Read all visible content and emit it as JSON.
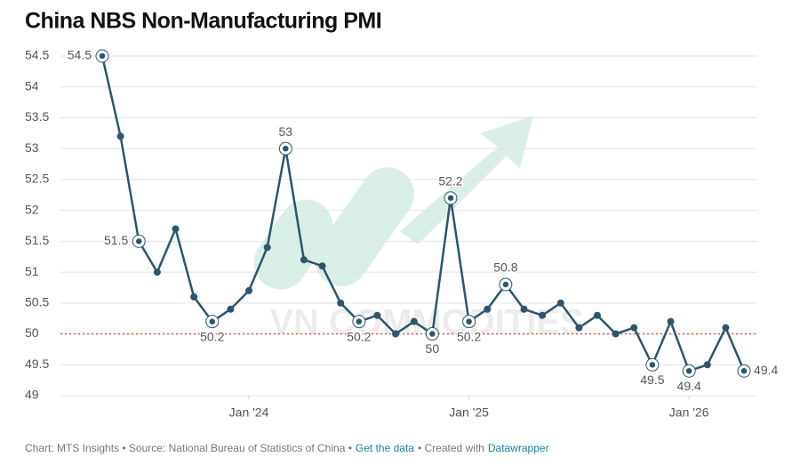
{
  "chart_data": {
    "type": "line",
    "title": "China NBS Non-Manufacturing PMI",
    "x": [
      "2023-05",
      "2023-06",
      "2023-07",
      "2023-08",
      "2023-09",
      "2023-10",
      "2023-11",
      "2023-12",
      "2024-01",
      "2024-02",
      "2024-03",
      "2024-04",
      "2024-05",
      "2024-06",
      "2024-07",
      "2024-08",
      "2024-09",
      "2024-10",
      "2024-11",
      "2024-12",
      "2025-01",
      "2025-02",
      "2025-03",
      "2025-04",
      "2025-05",
      "2025-06",
      "2025-07",
      "2025-08",
      "2025-09",
      "2025-10",
      "2025-11",
      "2025-12",
      "2026-01",
      "2026-02",
      "2026-03",
      "2026-04"
    ],
    "values": [
      54.5,
      53.2,
      51.5,
      51.0,
      51.7,
      50.6,
      50.2,
      50.4,
      50.7,
      51.4,
      53.0,
      51.2,
      51.1,
      50.5,
      50.2,
      50.3,
      50.0,
      50.2,
      50.0,
      52.2,
      50.2,
      50.4,
      50.8,
      50.4,
      50.3,
      50.5,
      50.1,
      50.3,
      50.0,
      50.1,
      49.5,
      50.2,
      49.4,
      49.5,
      50.1,
      49.4
    ],
    "value_labels": [
      "54.5",
      null,
      "51.5",
      null,
      null,
      null,
      "50.2",
      null,
      null,
      null,
      "53",
      null,
      null,
      null,
      "50.2",
      null,
      null,
      null,
      "50",
      "52.2",
      "50.2",
      null,
      "50.8",
      null,
      null,
      null,
      null,
      null,
      null,
      null,
      "49.5",
      null,
      "49.4",
      null,
      null,
      "49.4"
    ],
    "color": "#2d566a",
    "ylim": [
      49,
      54.5
    ],
    "yticks": [
      49,
      49.5,
      50,
      50.5,
      51,
      51.5,
      52,
      52.5,
      53,
      53.5,
      54,
      54.5
    ],
    "xticks": [
      {
        "value": "2024-01",
        "label": "Jan '24"
      },
      {
        "value": "2025-01",
        "label": "Jan '25"
      },
      {
        "value": "2026-01",
        "label": "Jan '26"
      }
    ],
    "grid": true,
    "reference_line": {
      "value": 50,
      "color": "#e0574a"
    },
    "watermark": "VN COMMODITIES",
    "footer": {
      "credit": "Chart: MTS Insights • Source: National Bureau of Statistics of China •",
      "link": "Get the data",
      "created": "• Created with",
      "brand": "Datawrapper"
    }
  }
}
